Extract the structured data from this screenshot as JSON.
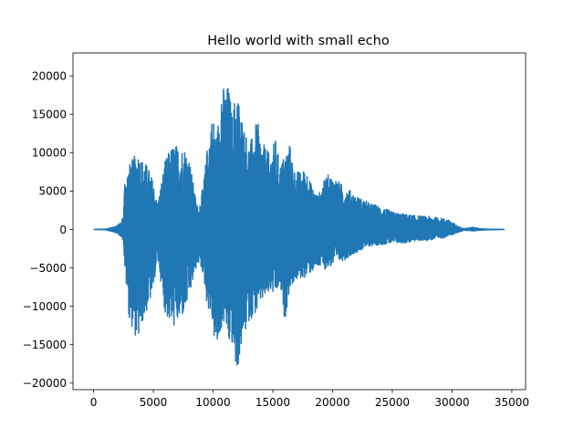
{
  "chart_data": {
    "type": "line",
    "title": "Hello world with small echo",
    "xlabel": "",
    "ylabel": "",
    "xlim": [
      -1720,
      36150
    ],
    "ylim": [
      -20860,
      22990
    ],
    "x_ticks": [
      0,
      5000,
      10000,
      15000,
      20000,
      25000,
      30000,
      35000
    ],
    "x_tick_labels": [
      "0",
      "5000",
      "10000",
      "15000",
      "20000",
      "25000",
      "30000",
      "35000"
    ],
    "y_ticks": [
      -20000,
      -15000,
      -10000,
      -5000,
      0,
      5000,
      10000,
      15000,
      20000
    ],
    "y_tick_labels": [
      "−20000",
      "−15000",
      "−10000",
      "−5000",
      "0",
      "5000",
      "10000",
      "15000",
      "20000"
    ],
    "grid": false,
    "color": "#1f77b4",
    "x_range": [
      0,
      34400
    ],
    "envelope": {
      "x": [
        0,
        1000,
        1800,
        2300,
        2500,
        2600,
        3000,
        3400,
        3700,
        4000,
        4300,
        4600,
        5000,
        5300,
        5500,
        5700,
        6000,
        6400,
        6800,
        7200,
        7600,
        8000,
        8300,
        8600,
        8800,
        9200,
        9500,
        9800,
        10000,
        10300,
        10700,
        11000,
        11300,
        11600,
        11800,
        12000,
        12300,
        12600,
        13000,
        13400,
        13700,
        14000,
        14400,
        14800,
        15200,
        15600,
        16000,
        16400,
        16800,
        17300,
        17800,
        18300,
        18800,
        19500,
        20200,
        21000,
        21600,
        22000,
        23000,
        24000,
        25000,
        26000,
        27000,
        28000,
        29000,
        29500,
        30000,
        30500,
        31000,
        31800,
        32400,
        33000,
        34400
      ],
      "upper": [
        0,
        50,
        400,
        900,
        2000,
        6500,
        8500,
        9500,
        10200,
        9300,
        8800,
        8000,
        6200,
        3500,
        4500,
        6500,
        9000,
        10500,
        11200,
        10600,
        10800,
        9500,
        6500,
        3500,
        2800,
        6000,
        10500,
        14000,
        15000,
        12000,
        19700,
        18000,
        19000,
        15000,
        17000,
        18500,
        15500,
        13500,
        11000,
        12500,
        14500,
        11500,
        10800,
        9500,
        12000,
        8500,
        9800,
        11300,
        7800,
        7500,
        8000,
        5500,
        4500,
        7200,
        6800,
        5500,
        5000,
        4400,
        3500,
        3000,
        2300,
        2000,
        1800,
        1700,
        1500,
        1400,
        1000,
        400,
        100,
        300,
        100,
        50,
        0
      ],
      "lower": [
        0,
        -50,
        -400,
        -900,
        -1500,
        -5000,
        -12000,
        -13500,
        -14800,
        -12500,
        -11500,
        -10000,
        -8000,
        -4000,
        -5000,
        -8000,
        -11000,
        -12300,
        -12800,
        -12000,
        -11000,
        -9000,
        -7000,
        -5000,
        -4500,
        -6000,
        -10000,
        -11000,
        -13500,
        -16200,
        -13000,
        -12000,
        -15300,
        -15000,
        -17500,
        -18800,
        -16000,
        -14000,
        -12000,
        -11200,
        -11000,
        -9500,
        -9000,
        -8200,
        -8800,
        -7500,
        -12000,
        -7800,
        -6800,
        -6500,
        -6200,
        -5500,
        -5000,
        -5200,
        -4500,
        -4000,
        -3300,
        -3000,
        -2200,
        -2000,
        -1800,
        -1800,
        -1500,
        -1400,
        -1200,
        -1000,
        -700,
        -400,
        -100,
        -200,
        -100,
        -50,
        0
      ]
    }
  }
}
